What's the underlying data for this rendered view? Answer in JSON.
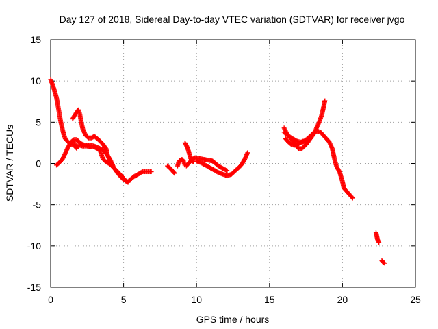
{
  "chart_data": {
    "type": "scatter",
    "title": "Day 127 of 2018, Sidereal Day-to-day VTEC variation (SDTVAR) for receiver jvgo",
    "xlabel": "GPS time / hours",
    "ylabel": "SDTVAR / TECUs",
    "xlim": [
      0,
      25
    ],
    "ylim": [
      -15,
      15
    ],
    "xticks": [
      "0",
      "5",
      "10",
      "15",
      "20",
      "25"
    ],
    "yticks": [
      "-15",
      "-10",
      "-5",
      "0",
      "5",
      "10",
      "15"
    ],
    "grid": true,
    "marker_color": "#ff0000",
    "series": [
      {
        "points": [
          [
            0.0,
            10.2
          ],
          [
            0.2,
            9.2
          ],
          [
            0.4,
            8.0
          ],
          [
            0.5,
            7.0
          ],
          [
            0.6,
            6.0
          ],
          [
            0.7,
            5.0
          ],
          [
            0.8,
            4.2
          ],
          [
            0.9,
            3.5
          ],
          [
            1.0,
            3.0
          ],
          [
            1.2,
            2.6
          ],
          [
            1.4,
            2.3
          ],
          [
            1.6,
            2.2
          ],
          [
            1.8,
            2.1
          ],
          [
            2.0,
            2.2
          ],
          [
            2.2,
            2.1
          ],
          [
            2.5,
            2.1
          ],
          [
            2.8,
            2.0
          ],
          [
            3.0,
            2.0
          ],
          [
            3.2,
            1.8
          ],
          [
            3.4,
            1.5
          ],
          [
            3.5,
            1.0
          ],
          [
            3.6,
            0.5
          ],
          [
            3.8,
            0.2
          ],
          [
            4.0,
            0.0
          ],
          [
            4.2,
            -0.3
          ]
        ]
      },
      {
        "points": [
          [
            0.4,
            -0.2
          ],
          [
            0.6,
            0.1
          ],
          [
            0.8,
            0.5
          ],
          [
            1.0,
            1.2
          ],
          [
            1.2,
            2.0
          ],
          [
            1.4,
            2.6
          ],
          [
            1.6,
            2.9
          ],
          [
            1.8,
            2.9
          ],
          [
            2.0,
            2.5
          ],
          [
            2.2,
            2.3
          ],
          [
            2.4,
            2.2
          ],
          [
            2.6,
            2.2
          ],
          [
            2.8,
            2.2
          ],
          [
            3.0,
            2.1
          ],
          [
            3.3,
            1.9
          ],
          [
            3.6,
            1.6
          ],
          [
            3.9,
            1.0
          ],
          [
            4.1,
            0.4
          ],
          [
            4.3,
            -0.4
          ],
          [
            4.6,
            -1.2
          ],
          [
            4.9,
            -1.8
          ],
          [
            5.2,
            -2.2
          ]
        ]
      },
      {
        "points": [
          [
            1.5,
            5.4
          ],
          [
            1.7,
            6.0
          ],
          [
            1.9,
            6.5
          ],
          [
            2.0,
            6.0
          ],
          [
            2.1,
            5.0
          ],
          [
            2.2,
            4.2
          ],
          [
            2.4,
            3.4
          ],
          [
            2.6,
            3.1
          ],
          [
            2.8,
            3.1
          ],
          [
            3.0,
            3.3
          ],
          [
            3.2,
            3.0
          ],
          [
            3.4,
            2.7
          ],
          [
            3.6,
            2.3
          ],
          [
            3.8,
            1.8
          ],
          [
            3.9,
            1.0
          ],
          [
            4.1,
            0.2
          ],
          [
            4.3,
            -0.5
          ],
          [
            4.6,
            -1.0
          ],
          [
            4.9,
            -1.6
          ],
          [
            5.1,
            -2.0
          ],
          [
            5.3,
            -2.3
          ]
        ]
      },
      {
        "points": [
          [
            1.6,
            2.6
          ],
          [
            1.7,
            2.0
          ],
          [
            1.8,
            1.8
          ]
        ]
      },
      {
        "points": [
          [
            5.3,
            -2.2
          ],
          [
            5.5,
            -1.9
          ],
          [
            5.7,
            -1.6
          ],
          [
            6.0,
            -1.3
          ],
          [
            6.3,
            -1.0
          ],
          [
            6.6,
            -1.0
          ],
          [
            6.9,
            -1.0
          ]
        ]
      },
      {
        "points": [
          [
            8.0,
            -0.3
          ],
          [
            8.2,
            -0.6
          ],
          [
            8.4,
            -1.0
          ],
          [
            8.5,
            -1.2
          ]
        ]
      },
      {
        "points": [
          [
            8.7,
            -0.3
          ],
          [
            8.8,
            0.3
          ],
          [
            9.0,
            0.5
          ],
          [
            9.1,
            0.3
          ],
          [
            9.2,
            -0.2
          ]
        ]
      },
      {
        "points": [
          [
            9.2,
            2.5
          ],
          [
            9.3,
            2.2
          ],
          [
            9.4,
            1.8
          ],
          [
            9.5,
            1.2
          ],
          [
            9.6,
            0.6
          ],
          [
            9.7,
            0.3
          ],
          [
            9.8,
            0.2
          ]
        ]
      },
      {
        "points": [
          [
            9.3,
            -0.3
          ],
          [
            9.5,
            0.1
          ],
          [
            9.7,
            0.5
          ],
          [
            9.9,
            0.7
          ],
          [
            10.2,
            0.6
          ],
          [
            10.5,
            0.5
          ],
          [
            10.8,
            0.4
          ],
          [
            11.1,
            0.3
          ],
          [
            11.3,
            0.0
          ],
          [
            11.5,
            -0.3
          ],
          [
            11.8,
            -0.6
          ],
          [
            12.1,
            -0.9
          ]
        ]
      },
      {
        "points": [
          [
            10.0,
            0.3
          ],
          [
            10.3,
            0.1
          ],
          [
            10.6,
            -0.2
          ],
          [
            10.9,
            -0.5
          ],
          [
            11.2,
            -0.8
          ],
          [
            11.5,
            -1.1
          ],
          [
            11.8,
            -1.3
          ],
          [
            12.1,
            -1.5
          ],
          [
            12.4,
            -1.3
          ],
          [
            12.7,
            -0.8
          ],
          [
            12.9,
            -0.5
          ],
          [
            13.1,
            -0.1
          ],
          [
            13.3,
            0.5
          ],
          [
            13.5,
            1.3
          ]
        ]
      },
      {
        "points": [
          [
            16.0,
            4.3
          ],
          [
            16.2,
            3.6
          ],
          [
            16.4,
            3.2
          ],
          [
            16.6,
            2.7
          ],
          [
            16.8,
            2.2
          ],
          [
            17.0,
            1.8
          ],
          [
            17.2,
            1.8
          ],
          [
            17.4,
            2.1
          ],
          [
            17.6,
            2.5
          ],
          [
            17.8,
            3.0
          ],
          [
            18.0,
            3.5
          ],
          [
            18.2,
            4.2
          ],
          [
            18.4,
            5.0
          ],
          [
            18.6,
            6.0
          ],
          [
            18.7,
            6.8
          ],
          [
            18.8,
            7.6
          ]
        ]
      },
      {
        "points": [
          [
            16.0,
            3.8
          ],
          [
            16.3,
            3.3
          ],
          [
            16.6,
            3.0
          ],
          [
            16.9,
            2.7
          ],
          [
            17.1,
            2.6
          ],
          [
            17.3,
            2.6
          ],
          [
            17.6,
            3.0
          ],
          [
            17.9,
            3.5
          ],
          [
            18.1,
            3.8
          ],
          [
            18.3,
            3.9
          ],
          [
            18.5,
            3.8
          ],
          [
            18.7,
            3.4
          ],
          [
            18.9,
            3.0
          ],
          [
            19.1,
            2.6
          ],
          [
            19.3,
            1.8
          ],
          [
            19.4,
            1.0
          ],
          [
            19.5,
            0.2
          ],
          [
            19.6,
            -0.4
          ],
          [
            19.8,
            -1.0
          ],
          [
            19.9,
            -1.6
          ],
          [
            20.0,
            -2.2
          ],
          [
            20.1,
            -3.0
          ],
          [
            20.3,
            -3.4
          ],
          [
            20.5,
            -3.8
          ],
          [
            20.7,
            -4.2
          ]
        ]
      },
      {
        "points": [
          [
            16.1,
            3.0
          ],
          [
            16.3,
            2.6
          ],
          [
            16.5,
            2.3
          ],
          [
            16.7,
            2.2
          ],
          [
            16.9,
            2.3
          ],
          [
            17.1,
            2.5
          ],
          [
            17.3,
            2.7
          ],
          [
            17.5,
            2.7
          ]
        ]
      },
      {
        "points": [
          [
            22.3,
            -8.4
          ],
          [
            22.35,
            -8.8
          ],
          [
            22.4,
            -9.2
          ],
          [
            22.5,
            -9.6
          ]
        ]
      },
      {
        "points": [
          [
            22.7,
            -11.8
          ],
          [
            22.8,
            -12.0
          ],
          [
            22.9,
            -12.1
          ]
        ]
      }
    ]
  }
}
